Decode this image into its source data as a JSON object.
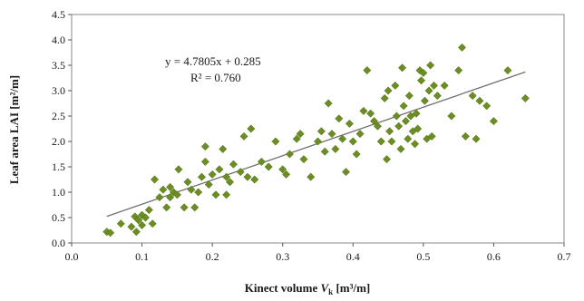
{
  "chart_data": {
    "type": "scatter",
    "xlabel": "Kinect volume Vₖ [m³/m]",
    "xlabel_main": "Kinect volume ",
    "xlabel_var": "V",
    "xlabel_sub": "k",
    "xlabel_unit": " [m³/m]",
    "ylabel": "Leaf area LAI [m²/m]",
    "xlim": [
      0.0,
      0.7
    ],
    "ylim": [
      0.0,
      4.5
    ],
    "xticks": [
      "0.0",
      "0.1",
      "0.2",
      "0.3",
      "0.4",
      "0.5",
      "0.6",
      "0.7"
    ],
    "yticks": [
      "0.0",
      "0.5",
      "1.0",
      "1.5",
      "2.0",
      "2.5",
      "3.0",
      "3.5",
      "4.0",
      "4.5"
    ],
    "grid": false,
    "marker": "diamond",
    "point_color": "#6b8e23",
    "line_color": "#707070",
    "trendline": {
      "slope": 4.7805,
      "intercept": 0.285,
      "x_range": [
        0.05,
        0.645
      ]
    },
    "annotation": {
      "equation": "y = 4.7805x + 0.285",
      "r2": "R² = 0.760"
    },
    "points": [
      [
        0.05,
        0.22
      ],
      [
        0.055,
        0.2
      ],
      [
        0.07,
        0.38
      ],
      [
        0.085,
        0.32
      ],
      [
        0.09,
        0.52
      ],
      [
        0.092,
        0.22
      ],
      [
        0.095,
        0.45
      ],
      [
        0.1,
        0.55
      ],
      [
        0.1,
        0.35
      ],
      [
        0.105,
        0.5
      ],
      [
        0.11,
        0.65
      ],
      [
        0.115,
        0.38
      ],
      [
        0.118,
        1.25
      ],
      [
        0.125,
        0.9
      ],
      [
        0.13,
        1.05
      ],
      [
        0.135,
        0.7
      ],
      [
        0.14,
        1.1
      ],
      [
        0.14,
        0.9
      ],
      [
        0.145,
        1.0
      ],
      [
        0.15,
        0.95
      ],
      [
        0.152,
        1.45
      ],
      [
        0.16,
        0.7
      ],
      [
        0.165,
        1.2
      ],
      [
        0.17,
        1.05
      ],
      [
        0.175,
        0.7
      ],
      [
        0.18,
        1.0
      ],
      [
        0.185,
        1.3
      ],
      [
        0.19,
        1.6
      ],
      [
        0.19,
        1.9
      ],
      [
        0.195,
        1.15
      ],
      [
        0.2,
        1.35
      ],
      [
        0.205,
        0.95
      ],
      [
        0.21,
        1.45
      ],
      [
        0.215,
        1.85
      ],
      [
        0.22,
        1.3
      ],
      [
        0.22,
        0.95
      ],
      [
        0.225,
        1.2
      ],
      [
        0.23,
        1.55
      ],
      [
        0.24,
        1.4
      ],
      [
        0.245,
        2.1
      ],
      [
        0.25,
        1.3
      ],
      [
        0.255,
        2.25
      ],
      [
        0.26,
        1.25
      ],
      [
        0.27,
        1.6
      ],
      [
        0.28,
        1.5
      ],
      [
        0.29,
        2.0
      ],
      [
        0.3,
        1.45
      ],
      [
        0.305,
        1.35
      ],
      [
        0.31,
        1.75
      ],
      [
        0.32,
        2.05
      ],
      [
        0.325,
        2.15
      ],
      [
        0.33,
        1.65
      ],
      [
        0.34,
        1.3
      ],
      [
        0.35,
        2.0
      ],
      [
        0.355,
        2.2
      ],
      [
        0.36,
        1.8
      ],
      [
        0.365,
        2.75
      ],
      [
        0.37,
        2.15
      ],
      [
        0.375,
        1.85
      ],
      [
        0.38,
        2.45
      ],
      [
        0.385,
        2.05
      ],
      [
        0.39,
        1.4
      ],
      [
        0.395,
        2.35
      ],
      [
        0.4,
        2.0
      ],
      [
        0.405,
        1.75
      ],
      [
        0.41,
        2.15
      ],
      [
        0.415,
        2.6
      ],
      [
        0.42,
        3.4
      ],
      [
        0.425,
        2.55
      ],
      [
        0.43,
        2.4
      ],
      [
        0.435,
        2.3
      ],
      [
        0.44,
        2.0
      ],
      [
        0.445,
        2.85
      ],
      [
        0.448,
        1.65
      ],
      [
        0.45,
        3.0
      ],
      [
        0.452,
        2.2
      ],
      [
        0.455,
        2.0
      ],
      [
        0.46,
        3.1
      ],
      [
        0.462,
        2.5
      ],
      [
        0.465,
        2.3
      ],
      [
        0.468,
        1.85
      ],
      [
        0.47,
        3.45
      ],
      [
        0.472,
        2.7
      ],
      [
        0.475,
        2.4
      ],
      [
        0.478,
        2.05
      ],
      [
        0.48,
        2.9
      ],
      [
        0.482,
        2.5
      ],
      [
        0.485,
        2.2
      ],
      [
        0.488,
        1.95
      ],
      [
        0.49,
        2.55
      ],
      [
        0.492,
        2.25
      ],
      [
        0.495,
        3.4
      ],
      [
        0.497,
        3.2
      ],
      [
        0.5,
        3.35
      ],
      [
        0.502,
        2.8
      ],
      [
        0.505,
        2.05
      ],
      [
        0.508,
        3.0
      ],
      [
        0.51,
        3.5
      ],
      [
        0.512,
        2.1
      ],
      [
        0.515,
        3.1
      ],
      [
        0.52,
        2.9
      ],
      [
        0.53,
        3.1
      ],
      [
        0.54,
        2.5
      ],
      [
        0.55,
        3.4
      ],
      [
        0.555,
        3.85
      ],
      [
        0.56,
        2.1
      ],
      [
        0.57,
        2.9
      ],
      [
        0.575,
        2.05
      ],
      [
        0.58,
        2.8
      ],
      [
        0.59,
        2.7
      ],
      [
        0.6,
        2.4
      ],
      [
        0.62,
        3.4
      ],
      [
        0.645,
        2.85
      ]
    ]
  }
}
